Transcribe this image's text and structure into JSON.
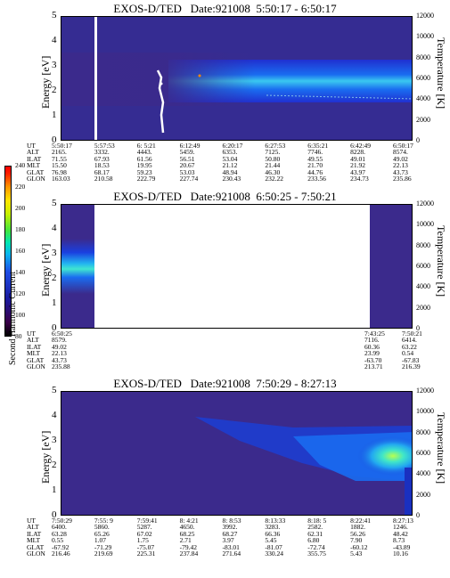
{
  "chart_data": [
    {
      "type": "heatmap",
      "title": "EXOS-D/TED   Date:921008  5:50:17 - 6:50:17",
      "ylabel": "Energy [eV]",
      "y2label": "Temperature [K]",
      "ylim": [
        0,
        5
      ],
      "y2lim": [
        0,
        12000
      ],
      "yticks": [
        "0",
        "1",
        "2",
        "3",
        "4",
        "5"
      ],
      "y2ticks": [
        "0",
        "2000",
        "4000",
        "6000",
        "8000",
        "10000",
        "12000"
      ],
      "rows": [
        {
          "label": "UT",
          "values": [
            "5:50:17",
            "5:57:53",
            "6: 5:21",
            "6:12:49",
            "6:20:17",
            "6:27:53",
            "6:35:21",
            "6:42:49",
            "6:50:17"
          ]
        },
        {
          "label": "ALT",
          "values": [
            "2165.",
            "3332.",
            "4443.",
            "5459.",
            "6353.",
            "7125.",
            "7746.",
            "8228.",
            "8574."
          ]
        },
        {
          "label": "ILAT",
          "values": [
            "71.55",
            "67.93",
            "61.56",
            "56.51",
            "53.04",
            "50.80",
            "49.55",
            "49.01",
            "49.02"
          ]
        },
        {
          "label": "MLT",
          "values": [
            "15.50",
            "18.53",
            "19.95",
            "20.67",
            "21.12",
            "21.44",
            "21.70",
            "21.92",
            "22.13"
          ]
        },
        {
          "label": "GLAT",
          "values": [
            "76.98",
            "68.17",
            "59.23",
            "53.03",
            "48.94",
            "46.30",
            "44.76",
            "43.97",
            "43.73"
          ]
        },
        {
          "label": "GLON",
          "values": [
            "163.03",
            "210.58",
            "222.79",
            "227.74",
            "230.43",
            "232.22",
            "233.56",
            "234.73",
            "235.86"
          ]
        }
      ]
    },
    {
      "type": "heatmap",
      "title": "EXOS-D/TED   Date:921008  6:50:25 - 7:50:21",
      "ylabel": "Energy [eV]",
      "y2label": "Temperature [K]",
      "ylim": [
        0,
        5
      ],
      "y2lim": [
        0,
        12000
      ],
      "yticks": [
        "0",
        "1",
        "2",
        "3",
        "4",
        "5"
      ],
      "y2ticks": [
        "0",
        "2000",
        "4000",
        "6000",
        "8000",
        "10000",
        "12000"
      ],
      "rows": [
        {
          "label": "UT",
          "left": "6:50:25",
          "right": [
            "7:43:25",
            "7:50:21"
          ]
        },
        {
          "label": "ALT",
          "left": "8579.",
          "right": [
            "7116.",
            "6414."
          ]
        },
        {
          "label": "ILAT",
          "left": "49.02",
          "right": [
            "60.36",
            "63.22"
          ]
        },
        {
          "label": "MLT",
          "left": "22.13",
          "right": [
            "23.99",
            "0.54"
          ]
        },
        {
          "label": "GLAT",
          "left": "43.73",
          "right": [
            "-63.70",
            "-67.83"
          ]
        },
        {
          "label": "GLON",
          "left": "235.88",
          "right": [
            "213.71",
            "216.39"
          ]
        }
      ]
    },
    {
      "type": "heatmap",
      "title": "EXOS-D/TED   Date:921008  7:50:29 - 8:27:13",
      "ylabel": "Energy [eV]",
      "y2label": "Temperature [K]",
      "ylim": [
        0,
        5
      ],
      "y2lim": [
        0,
        12000
      ],
      "yticks": [
        "0",
        "1",
        "2",
        "3",
        "4",
        "5"
      ],
      "y2ticks": [
        "0",
        "2000",
        "4000",
        "6000",
        "8000",
        "10000",
        "12000"
      ],
      "rows": [
        {
          "label": "UT",
          "values": [
            "7:50:29",
            "7:55: 9",
            "7:59:41",
            "8: 4:21",
            "8: 8:53",
            "8:13:33",
            "8:18: 5",
            "8:22:41",
            "8:27:13"
          ]
        },
        {
          "label": "ALT",
          "values": [
            "6400.",
            "5860.",
            "5287.",
            "4650.",
            "3992.",
            "3283.",
            "2582.",
            "1882.",
            "1246."
          ]
        },
        {
          "label": "ILAT",
          "values": [
            "63.28",
            "65.26",
            "67.02",
            "68.25",
            "68.27",
            "66.36",
            "62.31",
            "56.26",
            "48.42"
          ]
        },
        {
          "label": "MLT",
          "values": [
            "0.55",
            "1.07",
            "1.75",
            "2.71",
            "3.97",
            "5.45",
            "6.80",
            "7.90",
            "8.73"
          ]
        },
        {
          "label": "GLAT",
          "values": [
            "-67.92",
            "-71.29",
            "-75.07",
            "-79.42",
            "-83.01",
            "-81.07",
            "-72.74",
            "-60.12",
            "-43.89"
          ]
        },
        {
          "label": "GLON",
          "values": [
            "216.46",
            "219.69",
            "225.31",
            "237.84",
            "271.64",
            "330.24",
            "355.75",
            "5.43",
            "10.16"
          ]
        }
      ]
    }
  ],
  "colorbar": {
    "label": "Second Harmonic Current",
    "ticks": [
      "80",
      "100",
      "120",
      "140",
      "160",
      "180",
      "200",
      "220",
      "240"
    ]
  },
  "colors": {
    "background": "#3b2a8c",
    "band": "#1a6cf0",
    "peak": "#40e6b4"
  }
}
